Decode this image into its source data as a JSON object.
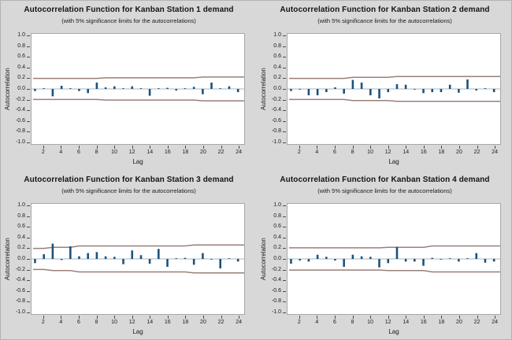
{
  "window": {
    "background_color": "#d8d8d8",
    "border_color": "#b3b3b3"
  },
  "colors": {
    "bar": "#1c517a",
    "limit_line": "#9a7f79",
    "zero_line": "#a4b7c7",
    "plot_bg": "#ffffff",
    "plot_border": "#a8a8a8",
    "tick": "#4d4d4d",
    "text": "#141414"
  },
  "axes": {
    "y_label": "Autocorrelation",
    "x_label": "Lag",
    "y_ticks": [
      "1.0",
      "0.8",
      "0.6",
      "0.4",
      "0.2",
      "0.0",
      "-0.2",
      "-0.4",
      "-0.6",
      "-0.8",
      "-1.0"
    ],
    "y_tick_values": [
      1.0,
      0.8,
      0.6,
      0.4,
      0.2,
      0.0,
      -0.2,
      -0.4,
      -0.6,
      -0.8,
      -1.0
    ],
    "x_ticks": [
      "2",
      "4",
      "6",
      "8",
      "10",
      "12",
      "14",
      "16",
      "18",
      "20",
      "22",
      "24"
    ],
    "x_tick_values": [
      2,
      4,
      6,
      8,
      10,
      12,
      14,
      16,
      18,
      20,
      22,
      24
    ]
  },
  "chart_data": [
    {
      "type": "bar",
      "title": "Autocorrelation Function for Kanban Station 1 demand",
      "subtitle": "(with 5% significance limits for the autocorrelations)",
      "xlabel": "Lag",
      "ylabel": "Autocorrelation",
      "ylim": [
        -1.0,
        1.0
      ],
      "xlim": [
        0.5,
        24.7
      ],
      "lags": [
        1,
        2,
        3,
        4,
        5,
        6,
        7,
        8,
        9,
        10,
        11,
        12,
        13,
        14,
        15,
        16,
        17,
        18,
        19,
        20,
        21,
        22,
        23,
        24
      ],
      "acf": [
        -0.04,
        0.01,
        -0.14,
        0.06,
        0.01,
        -0.04,
        -0.08,
        0.12,
        0.03,
        0.05,
        0.01,
        0.05,
        0.01,
        -0.13,
        0.01,
        0.02,
        -0.03,
        0.01,
        0.04,
        -0.1,
        0.12,
        0.01,
        0.05,
        -0.06
      ],
      "upper_limit": [
        0.2,
        0.2,
        0.2,
        0.2,
        0.2,
        0.2,
        0.2,
        0.2,
        0.21,
        0.21,
        0.21,
        0.21,
        0.21,
        0.21,
        0.21,
        0.21,
        0.21,
        0.21,
        0.21,
        0.225,
        0.225,
        0.225,
        0.225,
        0.225
      ],
      "lower_limit": [
        -0.2,
        -0.2,
        -0.2,
        -0.2,
        -0.2,
        -0.2,
        -0.2,
        -0.2,
        -0.21,
        -0.21,
        -0.21,
        -0.21,
        -0.21,
        -0.21,
        -0.21,
        -0.21,
        -0.21,
        -0.21,
        -0.21,
        -0.225,
        -0.225,
        -0.225,
        -0.225,
        -0.225
      ]
    },
    {
      "type": "bar",
      "title": "Autocorrelation Function for Kanban Station 2 demand",
      "subtitle": "(with 5% significance limits for the autocorrelations)",
      "xlabel": "Lag",
      "ylabel": "Autocorrelation",
      "ylim": [
        -1.0,
        1.0
      ],
      "xlim": [
        0.5,
        24.7
      ],
      "lags": [
        1,
        2,
        3,
        4,
        5,
        6,
        7,
        8,
        9,
        10,
        11,
        12,
        13,
        14,
        15,
        16,
        17,
        18,
        19,
        20,
        21,
        22,
        23,
        24
      ],
      "acf": [
        -0.04,
        -0.01,
        -0.12,
        -0.12,
        -0.06,
        0.03,
        -0.09,
        0.17,
        0.12,
        -0.12,
        -0.18,
        -0.06,
        0.09,
        0.08,
        -0.01,
        -0.08,
        -0.06,
        -0.06,
        0.08,
        -0.07,
        0.18,
        -0.03,
        0.01,
        -0.06
      ],
      "upper_limit": [
        0.2,
        0.2,
        0.2,
        0.2,
        0.2,
        0.2,
        0.2,
        0.22,
        0.22,
        0.22,
        0.22,
        0.22,
        0.235,
        0.235,
        0.235,
        0.235,
        0.235,
        0.235,
        0.235,
        0.235,
        0.235,
        0.235,
        0.235,
        0.235
      ],
      "lower_limit": [
        -0.2,
        -0.2,
        -0.2,
        -0.2,
        -0.2,
        -0.2,
        -0.2,
        -0.22,
        -0.22,
        -0.22,
        -0.22,
        -0.22,
        -0.235,
        -0.235,
        -0.235,
        -0.235,
        -0.235,
        -0.235,
        -0.235,
        -0.235,
        -0.235,
        -0.235,
        -0.235,
        -0.235
      ]
    },
    {
      "type": "bar",
      "title": "Autocorrelation Function for Kanban Station 3 demand",
      "subtitle": "(with 5% significance limits for the autocorrelations)",
      "xlabel": "Lag",
      "ylabel": "Autocorrelation",
      "ylim": [
        -1.0,
        1.0
      ],
      "xlim": [
        0.5,
        24.7
      ],
      "lags": [
        1,
        2,
        3,
        4,
        5,
        6,
        7,
        8,
        9,
        10,
        11,
        12,
        13,
        14,
        15,
        16,
        17,
        18,
        19,
        20,
        21,
        22,
        23,
        24
      ],
      "acf": [
        -0.08,
        0.09,
        0.29,
        -0.02,
        0.24,
        0.05,
        0.11,
        0.13,
        0.05,
        0.04,
        -0.1,
        0.16,
        0.07,
        -0.09,
        0.19,
        -0.15,
        0.01,
        0.02,
        -0.11,
        0.11,
        -0.01,
        -0.18,
        0.01,
        -0.05
      ],
      "upper_limit": [
        0.2,
        0.2,
        0.22,
        0.22,
        0.22,
        0.245,
        0.245,
        0.245,
        0.245,
        0.245,
        0.245,
        0.245,
        0.245,
        0.245,
        0.245,
        0.245,
        0.245,
        0.245,
        0.265,
        0.265,
        0.265,
        0.265,
        0.265,
        0.265
      ],
      "lower_limit": [
        -0.2,
        -0.2,
        -0.22,
        -0.22,
        -0.22,
        -0.245,
        -0.245,
        -0.245,
        -0.245,
        -0.245,
        -0.245,
        -0.245,
        -0.245,
        -0.245,
        -0.245,
        -0.245,
        -0.245,
        -0.245,
        -0.265,
        -0.265,
        -0.265,
        -0.265,
        -0.265,
        -0.265
      ]
    },
    {
      "type": "bar",
      "title": "Autocorrelation Function for Kanban Station 4 demand",
      "subtitle": "(with 5% significance limits for the autocorrelations)",
      "xlabel": "Lag",
      "ylabel": "Autocorrelation",
      "ylim": [
        -1.0,
        1.0
      ],
      "xlim": [
        0.5,
        24.7
      ],
      "lags": [
        1,
        2,
        3,
        4,
        5,
        6,
        7,
        8,
        9,
        10,
        11,
        12,
        13,
        14,
        15,
        16,
        17,
        18,
        19,
        20,
        21,
        22,
        23,
        24
      ],
      "acf": [
        -0.09,
        -0.03,
        -0.05,
        0.08,
        0.04,
        -0.03,
        -0.15,
        0.08,
        0.05,
        0.04,
        -0.16,
        -0.08,
        0.23,
        -0.05,
        -0.05,
        -0.13,
        0.02,
        -0.01,
        0.01,
        -0.05,
        0.01,
        0.11,
        -0.07,
        -0.05
      ],
      "upper_limit": [
        0.21,
        0.21,
        0.21,
        0.21,
        0.21,
        0.21,
        0.21,
        0.21,
        0.21,
        0.21,
        0.21,
        0.22,
        0.22,
        0.22,
        0.22,
        0.22,
        0.245,
        0.245,
        0.245,
        0.245,
        0.245,
        0.245,
        0.245,
        0.245
      ],
      "lower_limit": [
        -0.21,
        -0.21,
        -0.21,
        -0.21,
        -0.21,
        -0.21,
        -0.21,
        -0.21,
        -0.21,
        -0.21,
        -0.21,
        -0.22,
        -0.22,
        -0.22,
        -0.22,
        -0.22,
        -0.245,
        -0.245,
        -0.245,
        -0.245,
        -0.245,
        -0.245,
        -0.245,
        -0.245
      ]
    }
  ]
}
